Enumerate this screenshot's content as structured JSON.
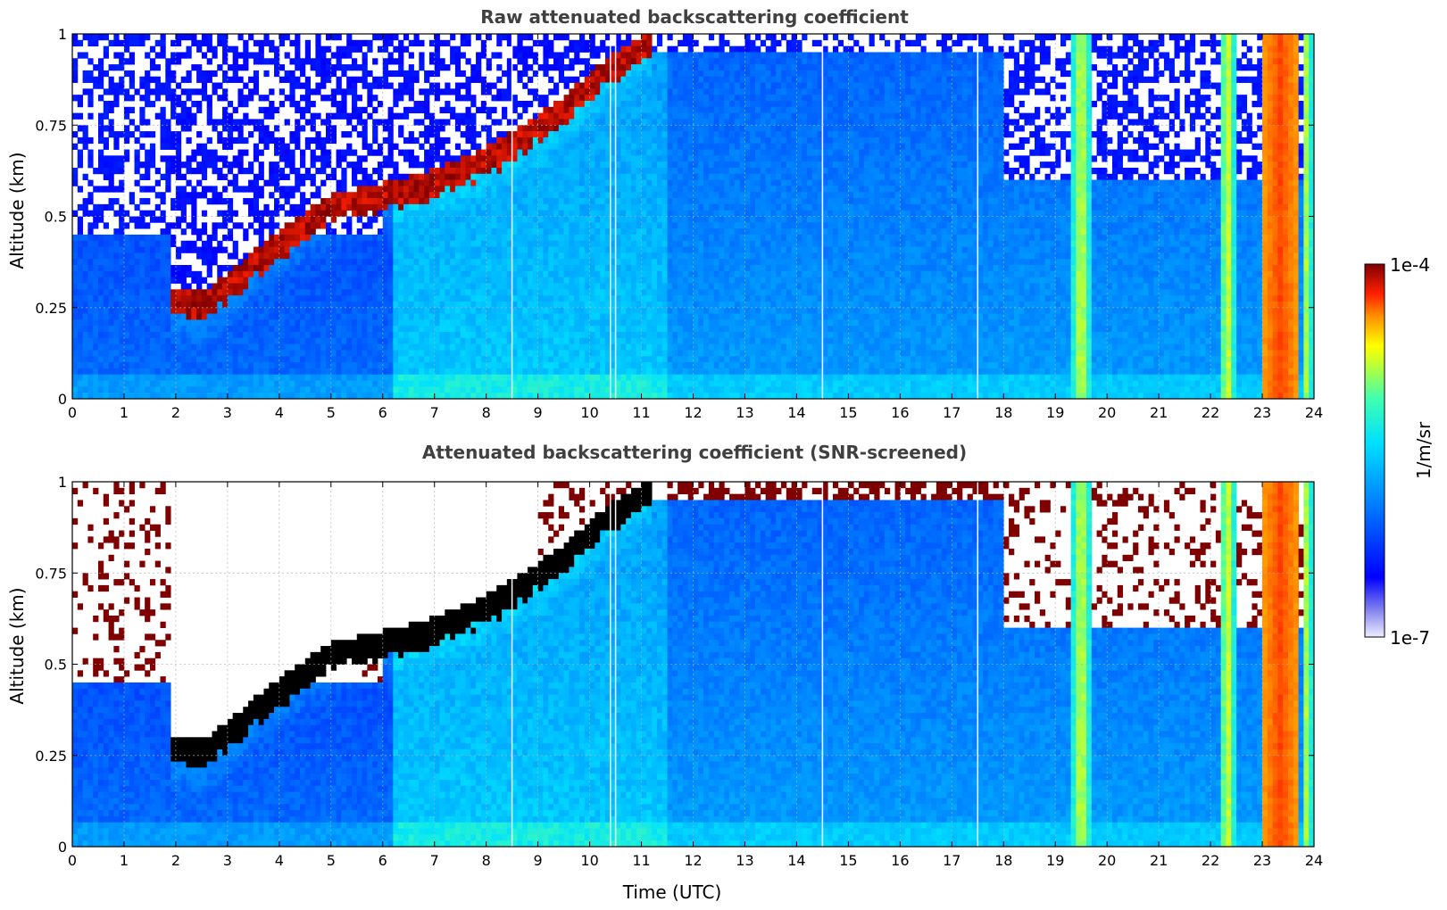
{
  "chart_data": [
    {
      "type": "heatmap",
      "title": "Raw attenuated backscattering coefficient",
      "xlabel": "",
      "ylabel": "Altitude (km)",
      "xlim": [
        0,
        24
      ],
      "ylim": [
        0,
        1
      ],
      "x_ticks": [
        "0",
        "1",
        "2",
        "3",
        "4",
        "5",
        "6",
        "7",
        "8",
        "9",
        "10",
        "11",
        "12",
        "13",
        "14",
        "15",
        "16",
        "17",
        "18",
        "19",
        "20",
        "21",
        "22",
        "23",
        "24"
      ],
      "y_ticks": [
        "0",
        "0.25",
        "0.5",
        "0.75",
        "1"
      ],
      "grid": true,
      "screened": false,
      "features": [
        {
          "kind": "layer_top",
          "points": [
            [
              1.9,
              0.3
            ],
            [
              2.5,
              0.28
            ],
            [
              3.0,
              0.33
            ],
            [
              3.5,
              0.4
            ],
            [
              4.0,
              0.45
            ],
            [
              5.0,
              0.55
            ],
            [
              6.0,
              0.58
            ],
            [
              7.0,
              0.62
            ],
            [
              8.0,
              0.68
            ],
            [
              8.8,
              0.75
            ],
            [
              9.5,
              0.82
            ],
            [
              10.3,
              0.92
            ],
            [
              11.2,
              1.0
            ]
          ]
        },
        {
          "kind": "dense_column",
          "x_range": [
            19.35,
            19.65
          ]
        },
        {
          "kind": "dense_column",
          "x_range": [
            22.2,
            22.45
          ]
        },
        {
          "kind": "dense_column",
          "x_range": [
            23.0,
            23.7
          ]
        },
        {
          "kind": "dense_column",
          "x_range": [
            23.8,
            23.95
          ]
        }
      ]
    },
    {
      "type": "heatmap",
      "title": "Attenuated backscattering coefficient (SNR-screened)",
      "xlabel": "Time (UTC)",
      "ylabel": "Altitude (km)",
      "xlim": [
        0,
        24
      ],
      "ylim": [
        0,
        1
      ],
      "x_ticks": [
        "0",
        "1",
        "2",
        "3",
        "4",
        "5",
        "6",
        "7",
        "8",
        "9",
        "10",
        "11",
        "12",
        "13",
        "14",
        "15",
        "16",
        "17",
        "18",
        "19",
        "20",
        "21",
        "22",
        "23",
        "24"
      ],
      "y_ticks": [
        "0",
        "0.25",
        "0.5",
        "0.75",
        "1"
      ],
      "grid": true,
      "screened": true
    }
  ],
  "colorbar": {
    "min_label": "1e-7",
    "max_label": "1e-4",
    "label": "1/m/sr",
    "colormap": "jet",
    "scale": "log",
    "range": [
      1e-07,
      0.0001
    ]
  },
  "colors": {
    "cloud_saturated_raw": "#7f0000",
    "cloud_saturated_screened": "#000000",
    "background": "#ffffff"
  }
}
